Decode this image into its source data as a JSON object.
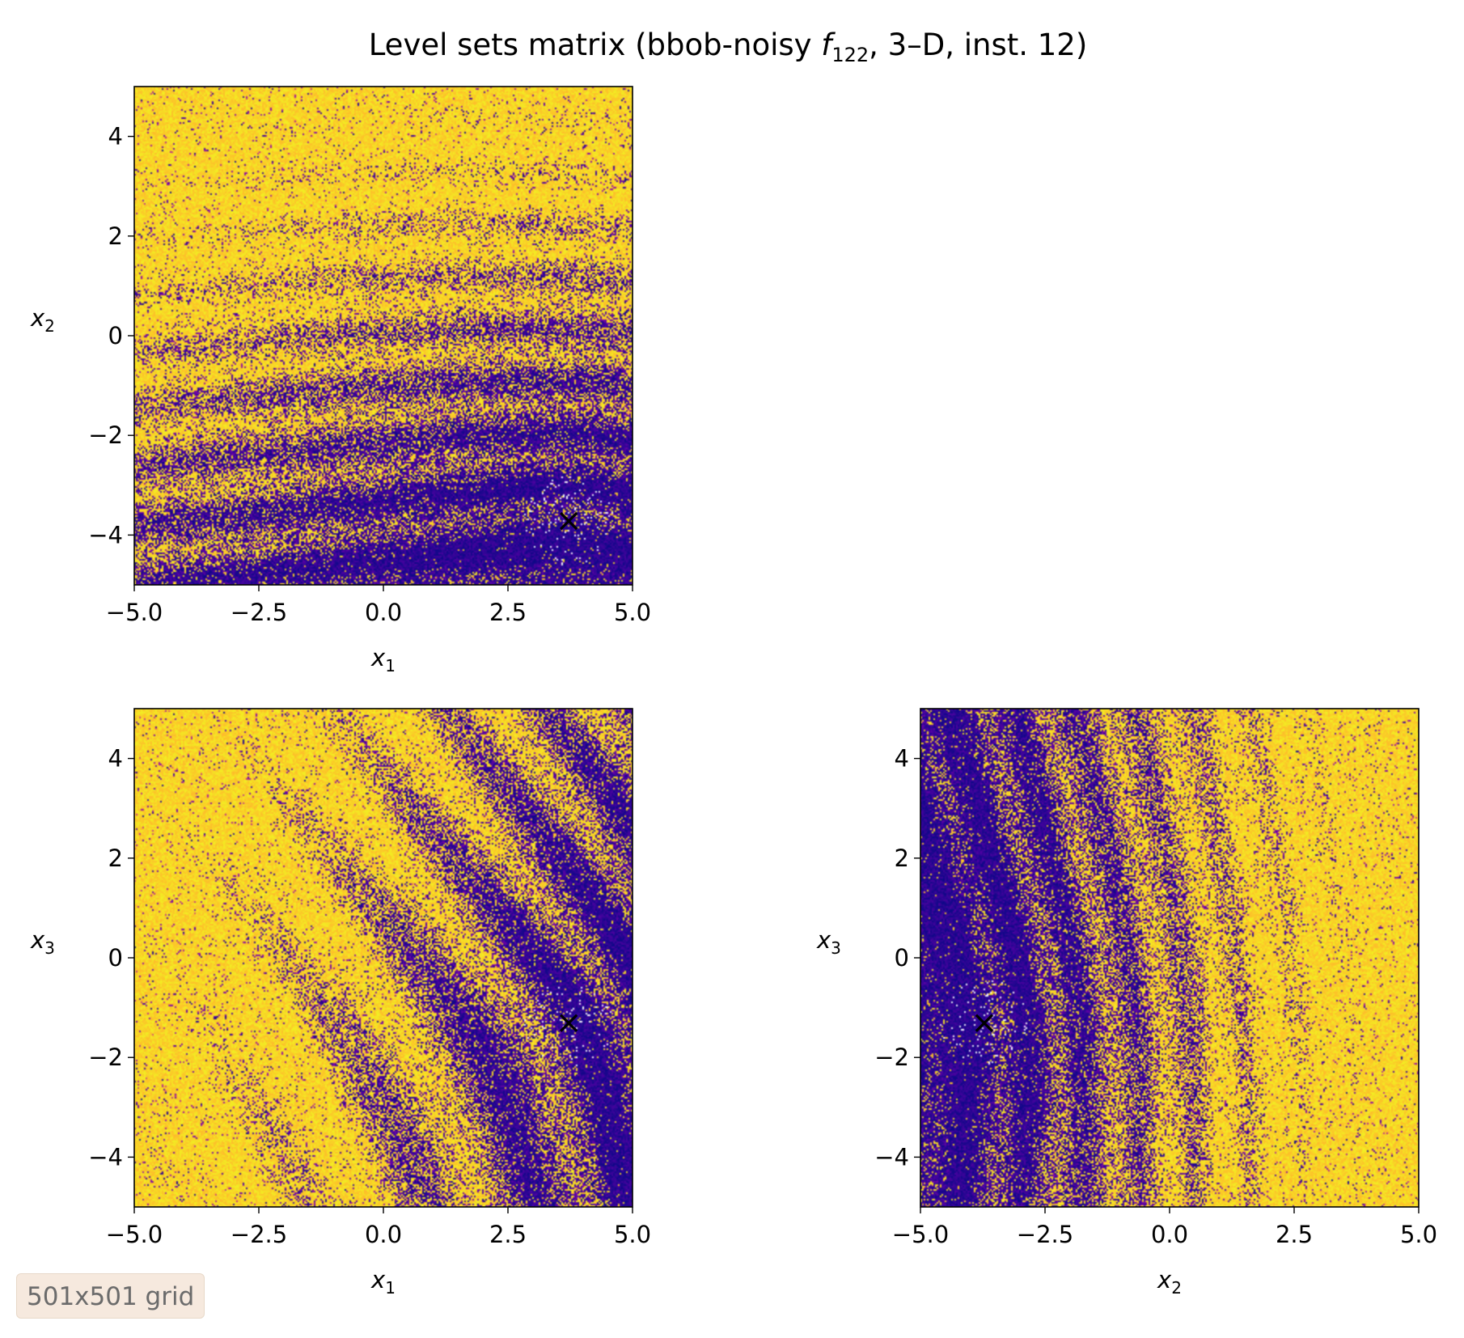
{
  "figure": {
    "title_pre": "Level sets matrix (bbob-noisy ",
    "title_fn": "f",
    "title_fn_sub": "122",
    "title_post": ", 3–D, inst. 12)"
  },
  "badge": {
    "label": "501x501 grid"
  },
  "colormap": [
    "#0d0887",
    "#5302a3",
    "#8b0aa5",
    "#b83289",
    "#db5c68",
    "#f48849",
    "#febd2a",
    "#f0f921"
  ],
  "chart_data": [
    {
      "type": "heatmap",
      "id": "x1-x2",
      "xlabel": "x",
      "xlabel_sub": "1",
      "ylabel": "x",
      "ylabel_sub": "2",
      "xlim": [
        -5.0,
        5.0
      ],
      "ylim": [
        -5.0,
        5.0
      ],
      "xticks": [
        -5.0,
        -2.5,
        0.0,
        2.5,
        5.0
      ],
      "xtick_labels": [
        "−5.0",
        "−2.5",
        "0.0",
        "2.5",
        "5.0"
      ],
      "yticks": [
        -4,
        -2,
        0,
        2,
        4
      ],
      "ytick_labels": [
        "−4",
        "−2",
        "0",
        "2",
        "4"
      ],
      "optimum": {
        "x": 3.72,
        "y": -3.72
      },
      "trend": {
        "wx": -0.05,
        "wy": 0.5,
        "c": 0.38
      },
      "ripple": {
        "kx": 0.25,
        "ky": 5.2,
        "amp": 0.22
      }
    },
    {
      "type": "heatmap",
      "id": "x1-x3",
      "xlabel": "x",
      "xlabel_sub": "1",
      "ylabel": "x",
      "ylabel_sub": "3",
      "xlim": [
        -5.0,
        5.0
      ],
      "ylim": [
        -5.0,
        5.0
      ],
      "xticks": [
        -5.0,
        -2.5,
        0.0,
        2.5,
        5.0
      ],
      "xtick_labels": [
        "−5.0",
        "−2.5",
        "0.0",
        "2.5",
        "5.0"
      ],
      "yticks": [
        -4,
        -2,
        0,
        2,
        4
      ],
      "ytick_labels": [
        "−4",
        "−2",
        "0",
        "2",
        "4"
      ],
      "optimum": {
        "x": 3.72,
        "y": -1.31
      },
      "trend": {
        "wx": -0.5,
        "wy": 0.06,
        "c": 0.52
      },
      "ripple": {
        "kx": 3.2,
        "ky": 1.6,
        "amp": 0.3
      }
    },
    {
      "type": "heatmap",
      "id": "x2-x3",
      "xlabel": "x",
      "xlabel_sub": "2",
      "ylabel": "x",
      "ylabel_sub": "3",
      "xlim": [
        -5.0,
        5.0
      ],
      "ylim": [
        -5.0,
        5.0
      ],
      "xticks": [
        -5.0,
        -2.5,
        0.0,
        2.5,
        5.0
      ],
      "xtick_labels": [
        "−5.0",
        "−2.5",
        "0.0",
        "2.5",
        "5.0"
      ],
      "yticks": [
        -4,
        -2,
        0,
        2,
        4
      ],
      "ytick_labels": [
        "−4",
        "−2",
        "0",
        "2",
        "4"
      ],
      "optimum": {
        "x": -3.72,
        "y": -1.31
      },
      "trend": {
        "wx": 0.62,
        "wy": -0.06,
        "c": 0.38
      },
      "ripple": {
        "kx": 5.0,
        "ky": 0.5,
        "amp": 0.22
      }
    }
  ]
}
